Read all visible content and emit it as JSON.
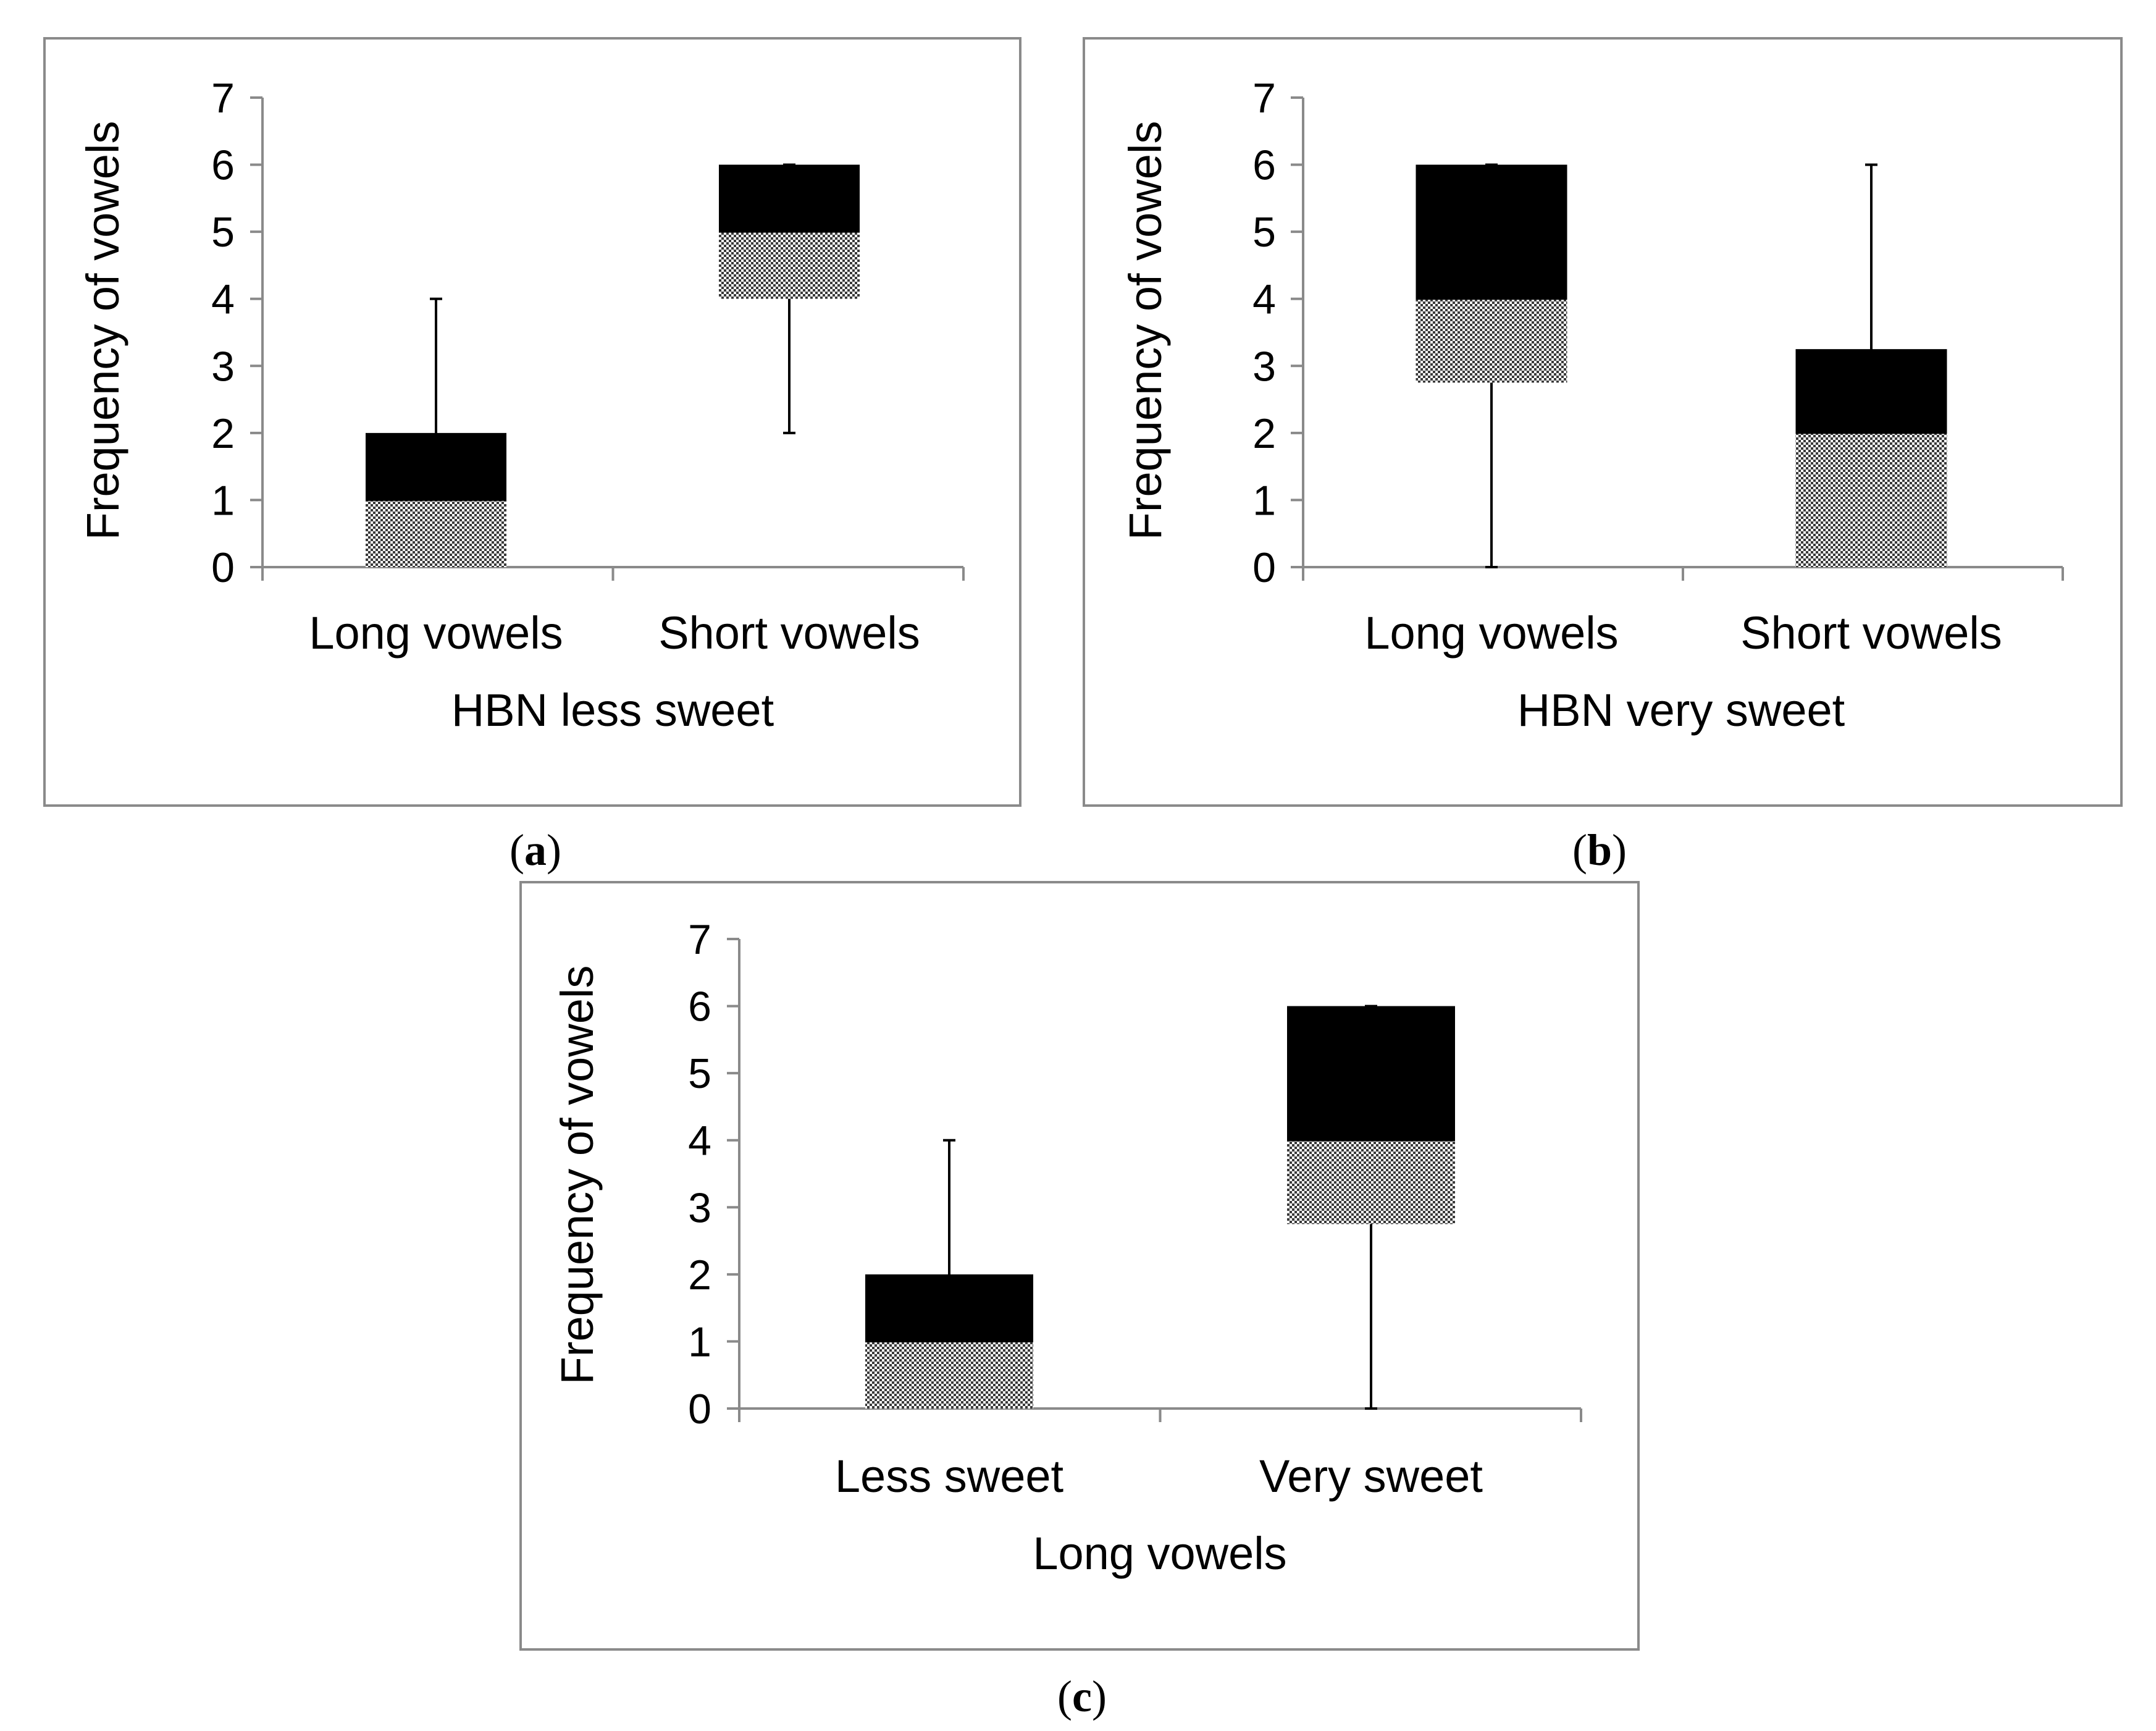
{
  "chart_data": [
    {
      "type": "boxplot",
      "panel_label": {
        "open": "(",
        "letter": "a",
        "close": ")"
      },
      "xlabel": "HBN less sweet",
      "ylabel": "Frequency of vowels",
      "ylim": [
        0,
        7
      ],
      "yticks": [
        0,
        1,
        2,
        3,
        4,
        5,
        6,
        7
      ],
      "categories": [
        "Long vowels",
        "Short vowels"
      ],
      "boxes": [
        {
          "min": 0,
          "q1": 0,
          "median": 1,
          "q3": 2,
          "max": 4
        },
        {
          "min": 2,
          "q1": 4,
          "median": 5,
          "q3": 6,
          "max": 6
        }
      ]
    },
    {
      "type": "boxplot",
      "panel_label": {
        "open": "(",
        "letter": "b",
        "close": ")"
      },
      "xlabel": "HBN very sweet",
      "ylabel": "Frequency of vowels",
      "ylim": [
        0,
        7
      ],
      "yticks": [
        0,
        1,
        2,
        3,
        4,
        5,
        6,
        7
      ],
      "categories": [
        "Long vowels",
        "Short vowels"
      ],
      "boxes": [
        {
          "min": 0,
          "q1": 2.75,
          "median": 4,
          "q3": 6,
          "max": 6
        },
        {
          "min": 0,
          "q1": 0,
          "median": 2,
          "q3": 3.25,
          "max": 6
        }
      ]
    },
    {
      "type": "boxplot",
      "panel_label": {
        "open": "(",
        "letter": "c",
        "close": ")"
      },
      "xlabel": "Long vowels",
      "ylabel": "Frequency of vowels",
      "ylim": [
        0,
        7
      ],
      "yticks": [
        0,
        1,
        2,
        3,
        4,
        5,
        6,
        7
      ],
      "categories": [
        "Less sweet",
        "Very sweet"
      ],
      "boxes": [
        {
          "min": 0,
          "q1": 0,
          "median": 1,
          "q3": 2,
          "max": 4
        },
        {
          "min": 0,
          "q1": 2.75,
          "median": 4,
          "q3": 6,
          "max": 6
        }
      ]
    }
  ],
  "colors": {
    "upper_box": "#000000",
    "lower_box_pattern": "#9a9a9a",
    "frame": "#8a8a8a",
    "axis": "#8a8a8a"
  }
}
